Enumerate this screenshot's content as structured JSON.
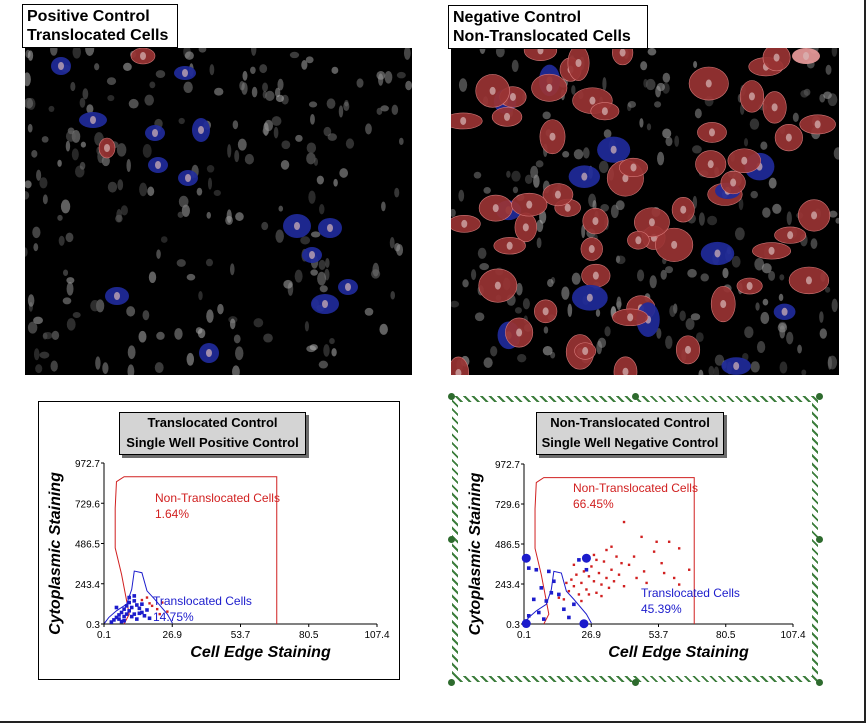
{
  "images": [
    {
      "label_line1": "Positive Control",
      "label_line2": "Translocated Cells"
    },
    {
      "label_line1": "Negative Control",
      "label_line2": "Non-Translocated Cells"
    }
  ],
  "colors": {
    "red_cells": "#9a3434",
    "blue_cells": "#1f2a9a",
    "gate_red": "#d12020",
    "gate_blue": "#1c1ccc"
  },
  "chart_data": [
    {
      "type": "scatter",
      "title_line1": "Translocated Control",
      "title_line2": "Single Well Positive Control",
      "xlabel": "Cell Edge Staining",
      "ylabel": "Cytoplasmic Staining",
      "xticks": [
        "0.1",
        "26.9",
        "53.7",
        "80.5",
        "107.4"
      ],
      "yticks": [
        "0.3",
        "243.4",
        "486.5",
        "729.6",
        "972.7"
      ],
      "xlim": [
        0.1,
        107.4
      ],
      "ylim": [
        0.3,
        972.7
      ],
      "gates": [
        {
          "name": "Non-Translocated Cells",
          "pct": "1.64%"
        },
        {
          "name": "Translocated Cells",
          "pct": "14.75%"
        }
      ],
      "series": [
        {
          "points": [
            [
              3,
              12
            ],
            [
              4,
              25
            ],
            [
              5,
              40
            ],
            [
              6,
              55
            ],
            [
              6,
              30
            ],
            [
              7,
              70
            ],
            [
              7,
              15
            ],
            [
              8,
              90
            ],
            [
              8,
              45
            ],
            [
              9,
              110
            ],
            [
              9,
              60
            ],
            [
              10,
              130
            ],
            [
              10,
              80
            ],
            [
              11,
              100
            ],
            [
              12,
              140
            ],
            [
              12,
              60
            ],
            [
              13,
              115
            ],
            [
              13,
              30
            ],
            [
              14,
              95
            ],
            [
              15,
              120
            ],
            [
              15,
              70
            ],
            [
              16,
              50
            ],
            [
              17,
              85
            ],
            [
              18,
              35
            ],
            [
              10,
              160
            ],
            [
              5,
              100
            ],
            [
              8,
              20
            ],
            [
              11,
              45
            ],
            [
              12,
              170
            ],
            [
              14,
              65
            ]
          ]
        },
        {
          "points": [
            [
              15,
              145
            ],
            [
              17,
              160
            ],
            [
              19,
              110
            ],
            [
              21,
              90
            ],
            [
              23,
              130
            ],
            [
              25,
              75
            ],
            [
              22,
              60
            ],
            [
              18,
              125
            ]
          ]
        }
      ]
    },
    {
      "type": "scatter",
      "title_line1": "Non-Translocated Control",
      "title_line2": "Single Well Negative Control",
      "xlabel": "Cell Edge Staining",
      "ylabel": "Cytoplasmic Staining",
      "xticks": [
        "0.1",
        "26.9",
        "53.7",
        "80.5",
        "107.4"
      ],
      "yticks": [
        "0.3",
        "243.4",
        "486.5",
        "729.6",
        "972.7"
      ],
      "xlim": [
        0.1,
        107.4
      ],
      "ylim": [
        0.3,
        972.7
      ],
      "gates": [
        {
          "name": "Non-Translocated Cells",
          "pct": "66.45%"
        },
        {
          "name": "Translocated Cells",
          "pct": "45.39%"
        }
      ],
      "series": [
        {
          "points": [
            [
              1,
              400
            ],
            [
              1,
              3
            ],
            [
              2,
              340
            ],
            [
              2,
              50
            ],
            [
              4,
              150
            ],
            [
              5,
              330
            ],
            [
              6,
              70
            ],
            [
              8,
              30
            ],
            [
              9,
              140
            ],
            [
              10,
              320
            ],
            [
              12,
              260
            ],
            [
              14,
              180
            ],
            [
              16,
              90
            ],
            [
              18,
              40
            ],
            [
              20,
              120
            ],
            [
              22,
              390
            ],
            [
              24,
              2
            ],
            [
              25,
              330
            ],
            [
              7,
              220
            ],
            [
              11,
              190
            ]
          ]
        },
        {
          "points": [
            [
              16,
              150
            ],
            [
              18,
              200
            ],
            [
              19,
              270
            ],
            [
              20,
              230
            ],
            [
              21,
              300
            ],
            [
              22,
              180
            ],
            [
              23,
              250
            ],
            [
              24,
              320
            ],
            [
              25,
              210
            ],
            [
              26,
              290
            ],
            [
              27,
              350
            ],
            [
              28,
              260
            ],
            [
              29,
              190
            ],
            [
              30,
              310
            ],
            [
              31,
              240
            ],
            [
              32,
              380
            ],
            [
              33,
              280
            ],
            [
              34,
              220
            ],
            [
              35,
              330
            ],
            [
              36,
              260
            ],
            [
              37,
              410
            ],
            [
              38,
              300
            ],
            [
              40,
              230
            ],
            [
              42,
              360
            ],
            [
              45,
              280
            ],
            [
              48,
              320
            ],
            [
              52,
              440
            ],
            [
              56,
              310
            ],
            [
              60,
              280
            ],
            [
              62,
              460
            ],
            [
              14,
              160
            ],
            [
              17,
              250
            ],
            [
              20,
              360
            ],
            [
              23,
              140
            ],
            [
              26,
              180
            ],
            [
              28,
              420
            ],
            [
              31,
              170
            ],
            [
              35,
              470
            ],
            [
              39,
              370
            ],
            [
              44,
              410
            ],
            [
              49,
              250
            ],
            [
              55,
              370
            ],
            [
              58,
              500
            ],
            [
              62,
              240
            ],
            [
              66,
              330
            ],
            [
              40,
              620
            ],
            [
              47,
              530
            ],
            [
              33,
              450
            ],
            [
              29,
              390
            ],
            [
              53,
              500
            ]
          ]
        }
      ]
    }
  ]
}
